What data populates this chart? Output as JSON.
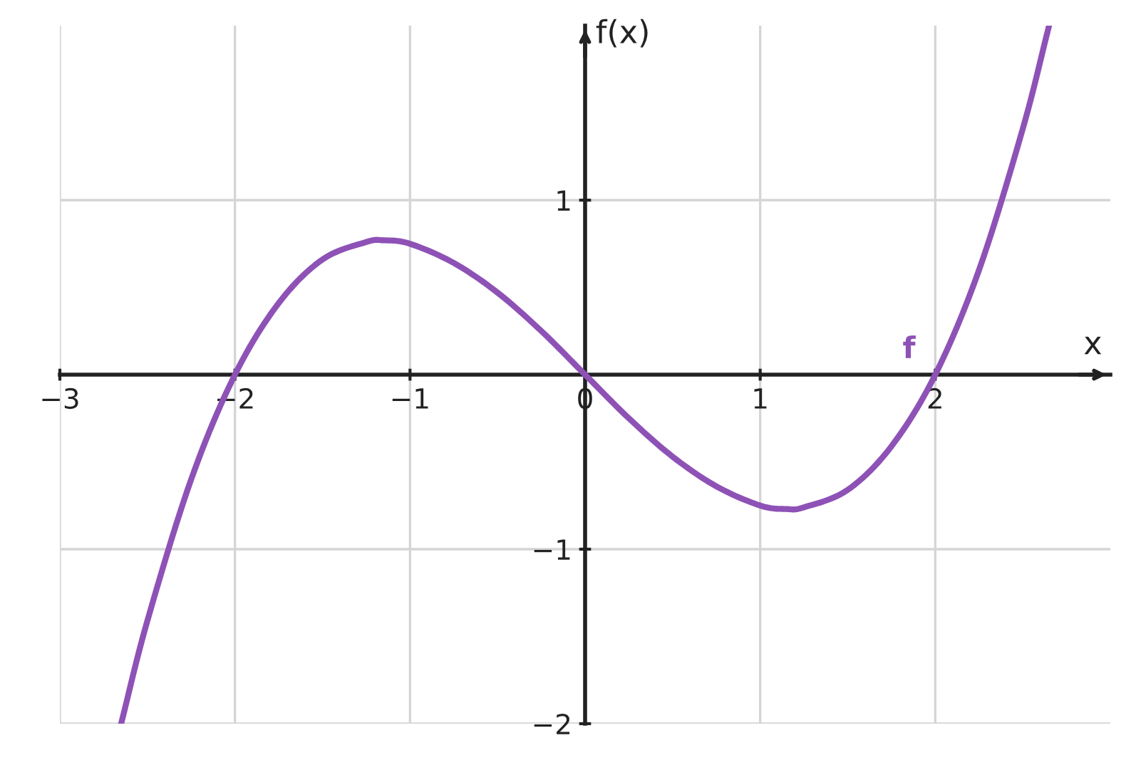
{
  "chart_data": {
    "type": "line",
    "xlabel": "x",
    "ylabel": "f(x)",
    "x": [
      -2.65,
      -2.5,
      -2.25,
      -2,
      -1.75,
      -1.5,
      -1.25,
      -1.15,
      -1,
      -0.75,
      -0.5,
      -0.25,
      0,
      0.25,
      0.5,
      0.75,
      1,
      1.15,
      1.25,
      1.5,
      1.75,
      2,
      2.25,
      2.5,
      2.65
    ],
    "series": [
      {
        "name": "f",
        "color": "#8e52b6",
        "values": [
          -2.0,
          -1.41,
          -0.6,
          0,
          0.41,
          0.66,
          0.76,
          0.77,
          0.75,
          0.64,
          0.47,
          0.25,
          0,
          -0.25,
          -0.47,
          -0.64,
          -0.75,
          -0.77,
          -0.76,
          -0.66,
          -0.41,
          0,
          0.6,
          1.41,
          2.0
        ]
      }
    ],
    "xlim": [
      -3,
      3
    ],
    "ylim": [
      -2,
      2
    ],
    "xticks": [
      -3,
      -2,
      -1,
      0,
      1,
      2
    ],
    "yticks": [
      -2,
      -1,
      1
    ],
    "grid": true,
    "marker": "none",
    "line_style": "solid",
    "legend": false
  }
}
